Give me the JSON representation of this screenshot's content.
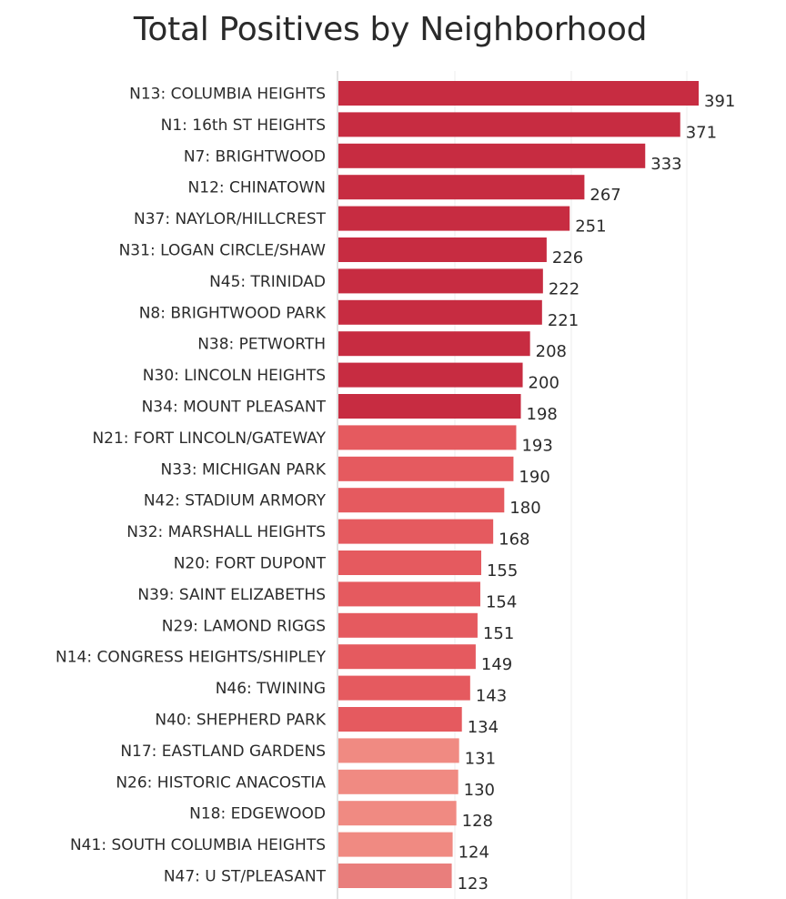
{
  "chart_data": {
    "type": "bar",
    "orientation": "horizontal",
    "title": "Total Positives by Neighborhood",
    "xlabel": "",
    "ylabel": "",
    "xlim": [
      0,
      420
    ],
    "grid": true,
    "legend": "none",
    "categories": [
      "N13: COLUMBIA HEIGHTS",
      "N1: 16th ST HEIGHTS",
      "N7: BRIGHTWOOD",
      "N12: CHINATOWN",
      "N37: NAYLOR/HILLCREST",
      "N31: LOGAN CIRCLE/SHAW",
      "N45: TRINIDAD",
      "N8: BRIGHTWOOD PARK",
      "N38: PETWORTH",
      "N30: LINCOLN HEIGHTS",
      "N34: MOUNT PLEASANT",
      "N21: FORT LINCOLN/GATEWAY",
      "N33: MICHIGAN PARK",
      "N42: STADIUM ARMORY",
      "N32: MARSHALL HEIGHTS",
      "N20: FORT DUPONT",
      "N39: SAINT ELIZABETHS",
      "N29: LAMOND RIGGS",
      "N14: CONGRESS HEIGHTS/SHIPLEY",
      "N46: TWINING",
      "N40: SHEPHERD PARK",
      "N17: EASTLAND GARDENS",
      "N26: HISTORIC ANACOSTIA",
      "N18: EDGEWOOD",
      "N41: SOUTH COLUMBIA HEIGHTS",
      "N47: U ST/PLEASANT"
    ],
    "values": [
      391,
      371,
      333,
      267,
      251,
      226,
      222,
      221,
      208,
      200,
      198,
      193,
      190,
      180,
      168,
      155,
      154,
      151,
      149,
      143,
      134,
      131,
      130,
      128,
      124,
      123
    ],
    "colors": {
      "high": "#c72c41",
      "mid": "#e55a5f",
      "low": "#f08a82",
      "lowest": "#e97e7c",
      "grid": "#ececec",
      "axis": "#d5d5d5"
    },
    "color_groups": [
      "high",
      "high",
      "high",
      "high",
      "high",
      "high",
      "high",
      "high",
      "high",
      "high",
      "high",
      "mid",
      "mid",
      "mid",
      "mid",
      "mid",
      "mid",
      "mid",
      "mid",
      "mid",
      "mid",
      "low",
      "low",
      "low",
      "low",
      "lowest"
    ]
  }
}
